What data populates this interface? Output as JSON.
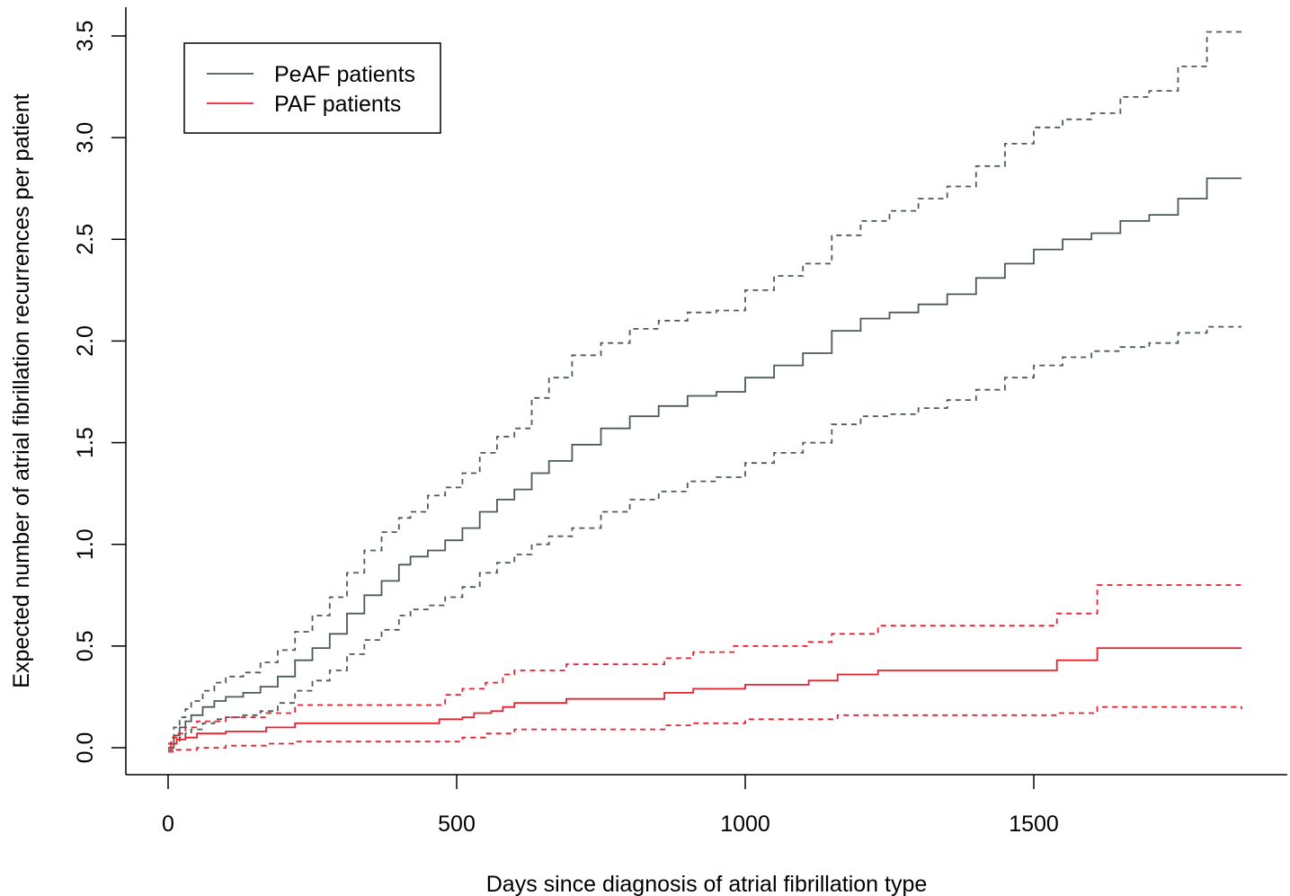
{
  "chart_data": {
    "type": "line",
    "xlabel": "Days since diagnosis of atrial fibrillation type",
    "ylabel": "Expected number of atrial fibrillation recurrences per patient",
    "xlim": [
      -20,
      1940
    ],
    "ylim": [
      -0.1,
      3.65
    ],
    "x_ticks": [
      "0",
      "500",
      "1000",
      "1500"
    ],
    "y_ticks": [
      "0.0",
      "0.5",
      "1.0",
      "1.5",
      "2.0",
      "2.5",
      "3.0",
      "3.5"
    ],
    "grid": false,
    "legend_position": "top-left",
    "legend": [
      {
        "label": "PeAF patients",
        "color": "#4d5a5a"
      },
      {
        "label": "PAF patients",
        "color": "#e8212f"
      }
    ],
    "series": [
      {
        "name": "PeAF patients",
        "role": "estimate",
        "color": "#4d5a5a",
        "line_style": "solid",
        "x": [
          0,
          10,
          20,
          30,
          40,
          60,
          80,
          100,
          130,
          160,
          190,
          220,
          250,
          280,
          310,
          340,
          370,
          400,
          420,
          450,
          480,
          510,
          540,
          570,
          600,
          630,
          660,
          700,
          750,
          800,
          850,
          900,
          950,
          1000,
          1050,
          1100,
          1150,
          1200,
          1250,
          1300,
          1350,
          1400,
          1450,
          1500,
          1550,
          1600,
          1650,
          1700,
          1750,
          1800,
          1860
        ],
        "y": [
          0.0,
          0.06,
          0.1,
          0.13,
          0.16,
          0.2,
          0.23,
          0.25,
          0.27,
          0.3,
          0.35,
          0.43,
          0.49,
          0.56,
          0.66,
          0.75,
          0.82,
          0.9,
          0.94,
          0.97,
          1.02,
          1.08,
          1.16,
          1.22,
          1.27,
          1.35,
          1.41,
          1.49,
          1.57,
          1.63,
          1.68,
          1.73,
          1.75,
          1.82,
          1.88,
          1.94,
          2.05,
          2.11,
          2.14,
          2.18,
          2.23,
          2.31,
          2.38,
          2.45,
          2.5,
          2.53,
          2.59,
          2.62,
          2.7,
          2.8,
          2.8
        ]
      },
      {
        "name": "PeAF patients",
        "role": "upper_ci",
        "color": "#4d5a5a",
        "line_style": "dashed",
        "x": [
          0,
          10,
          20,
          30,
          40,
          60,
          80,
          100,
          130,
          160,
          190,
          220,
          250,
          280,
          310,
          340,
          370,
          400,
          420,
          450,
          480,
          510,
          540,
          570,
          600,
          630,
          660,
          700,
          750,
          800,
          850,
          900,
          950,
          1000,
          1050,
          1100,
          1150,
          1200,
          1250,
          1300,
          1350,
          1400,
          1450,
          1500,
          1550,
          1600,
          1650,
          1700,
          1750,
          1800,
          1860
        ],
        "y": [
          0.02,
          0.1,
          0.15,
          0.19,
          0.23,
          0.28,
          0.32,
          0.35,
          0.37,
          0.42,
          0.48,
          0.57,
          0.65,
          0.74,
          0.86,
          0.97,
          1.06,
          1.13,
          1.16,
          1.24,
          1.28,
          1.35,
          1.45,
          1.53,
          1.57,
          1.72,
          1.82,
          1.93,
          1.99,
          2.06,
          2.1,
          2.14,
          2.15,
          2.25,
          2.32,
          2.38,
          2.52,
          2.59,
          2.64,
          2.7,
          2.76,
          2.86,
          2.97,
          3.05,
          3.09,
          3.12,
          3.2,
          3.23,
          3.35,
          3.52,
          3.52
        ]
      },
      {
        "name": "PeAF patients",
        "role": "lower_ci",
        "color": "#4d5a5a",
        "line_style": "dashed",
        "x": [
          0,
          10,
          20,
          30,
          40,
          60,
          80,
          100,
          130,
          160,
          190,
          220,
          250,
          280,
          310,
          340,
          370,
          400,
          420,
          450,
          480,
          510,
          540,
          570,
          600,
          630,
          660,
          700,
          750,
          800,
          850,
          900,
          950,
          1000,
          1050,
          1100,
          1150,
          1200,
          1250,
          1300,
          1350,
          1400,
          1450,
          1500,
          1550,
          1600,
          1650,
          1700,
          1750,
          1800,
          1860
        ],
        "y": [
          -0.01,
          0.02,
          0.05,
          0.07,
          0.09,
          0.12,
          0.14,
          0.15,
          0.16,
          0.18,
          0.22,
          0.28,
          0.33,
          0.38,
          0.46,
          0.53,
          0.58,
          0.65,
          0.68,
          0.7,
          0.74,
          0.79,
          0.86,
          0.91,
          0.95,
          1.0,
          1.04,
          1.08,
          1.16,
          1.22,
          1.26,
          1.31,
          1.33,
          1.4,
          1.45,
          1.5,
          1.59,
          1.63,
          1.64,
          1.67,
          1.71,
          1.76,
          1.82,
          1.88,
          1.92,
          1.95,
          1.97,
          1.99,
          2.04,
          2.07,
          2.07
        ]
      },
      {
        "name": "PAF patients",
        "role": "estimate",
        "color": "#e8212f",
        "line_style": "solid",
        "x": [
          0,
          5,
          15,
          30,
          50,
          100,
          170,
          220,
          470,
          510,
          530,
          560,
          580,
          600,
          690,
          860,
          910,
          1000,
          1110,
          1160,
          1230,
          1540,
          1610,
          1860
        ],
        "y": [
          0.0,
          0.02,
          0.04,
          0.05,
          0.07,
          0.08,
          0.1,
          0.12,
          0.14,
          0.15,
          0.17,
          0.18,
          0.2,
          0.22,
          0.24,
          0.27,
          0.29,
          0.31,
          0.33,
          0.36,
          0.38,
          0.43,
          0.49,
          0.49
        ]
      },
      {
        "name": "PAF patients",
        "role": "upper_ci",
        "color": "#e8212f",
        "line_style": "dashed",
        "x": [
          0,
          5,
          15,
          30,
          50,
          100,
          170,
          220,
          470,
          480,
          510,
          550,
          580,
          600,
          690,
          860,
          910,
          980,
          1110,
          1150,
          1230,
          1540,
          1610,
          1860
        ],
        "y": [
          0.02,
          0.05,
          0.07,
          0.1,
          0.13,
          0.15,
          0.17,
          0.21,
          0.21,
          0.26,
          0.29,
          0.32,
          0.36,
          0.38,
          0.41,
          0.44,
          0.47,
          0.5,
          0.52,
          0.56,
          0.6,
          0.66,
          0.8,
          0.8
        ]
      },
      {
        "name": "PAF patients",
        "role": "lower_ci",
        "color": "#e8212f",
        "line_style": "dashed",
        "x": [
          0,
          15,
          50,
          100,
          170,
          220,
          470,
          510,
          550,
          600,
          860,
          910,
          1000,
          1160,
          1540,
          1610,
          1860
        ],
        "y": [
          -0.02,
          -0.01,
          0.0,
          0.01,
          0.02,
          0.03,
          0.03,
          0.05,
          0.07,
          0.09,
          0.11,
          0.12,
          0.14,
          0.16,
          0.17,
          0.2,
          0.19
        ]
      }
    ]
  }
}
